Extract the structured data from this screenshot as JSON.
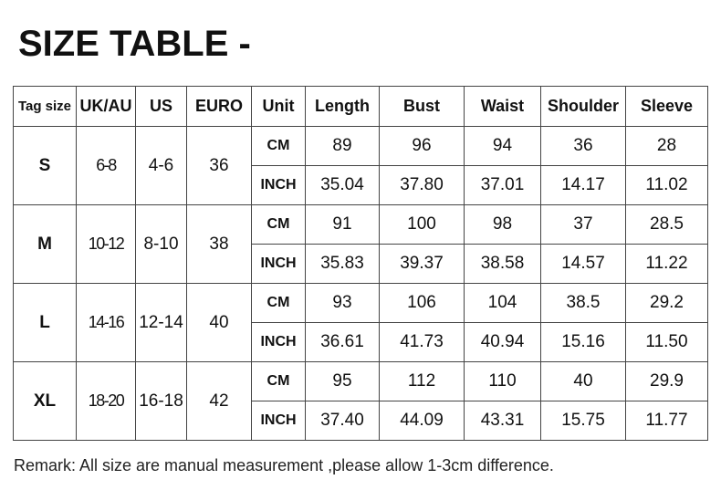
{
  "title": "SIZE TABLE -",
  "headers": [
    "Tag size",
    "UK/AU",
    "US",
    "EURO",
    "Unit",
    "Length",
    "Bust",
    "Waist",
    "Shoulder",
    "Sleeve"
  ],
  "sizes": [
    {
      "tag": "S",
      "ukau": "6-8",
      "us": "4-6",
      "euro": "36",
      "rows": [
        {
          "unit": "CM",
          "values": [
            "89",
            "96",
            "94",
            "36",
            "28"
          ]
        },
        {
          "unit": "INCH",
          "values": [
            "35.04",
            "37.80",
            "37.01",
            "14.17",
            "11.02"
          ]
        }
      ]
    },
    {
      "tag": "M",
      "ukau": "10-12",
      "us": "8-10",
      "euro": "38",
      "rows": [
        {
          "unit": "CM",
          "values": [
            "91",
            "100",
            "98",
            "37",
            "28.5"
          ]
        },
        {
          "unit": "INCH",
          "values": [
            "35.83",
            "39.37",
            "38.58",
            "14.57",
            "11.22"
          ]
        }
      ]
    },
    {
      "tag": "L",
      "ukau": "14-16",
      "us": "12-14",
      "euro": "40",
      "rows": [
        {
          "unit": "CM",
          "values": [
            "93",
            "106",
            "104",
            "38.5",
            "29.2"
          ]
        },
        {
          "unit": "INCH",
          "values": [
            "36.61",
            "41.73",
            "40.94",
            "15.16",
            "11.50"
          ]
        }
      ]
    },
    {
      "tag": "XL",
      "ukau": "18-20",
      "us": "16-18",
      "euro": "42",
      "rows": [
        {
          "unit": "CM",
          "values": [
            "95",
            "112",
            "110",
            "40",
            "29.9"
          ]
        },
        {
          "unit": "INCH",
          "values": [
            "37.40",
            "44.09",
            "43.31",
            "15.75",
            "11.77"
          ]
        }
      ]
    }
  ],
  "remark": "Remark: All size are manual measurement ,please allow 1-3cm difference."
}
